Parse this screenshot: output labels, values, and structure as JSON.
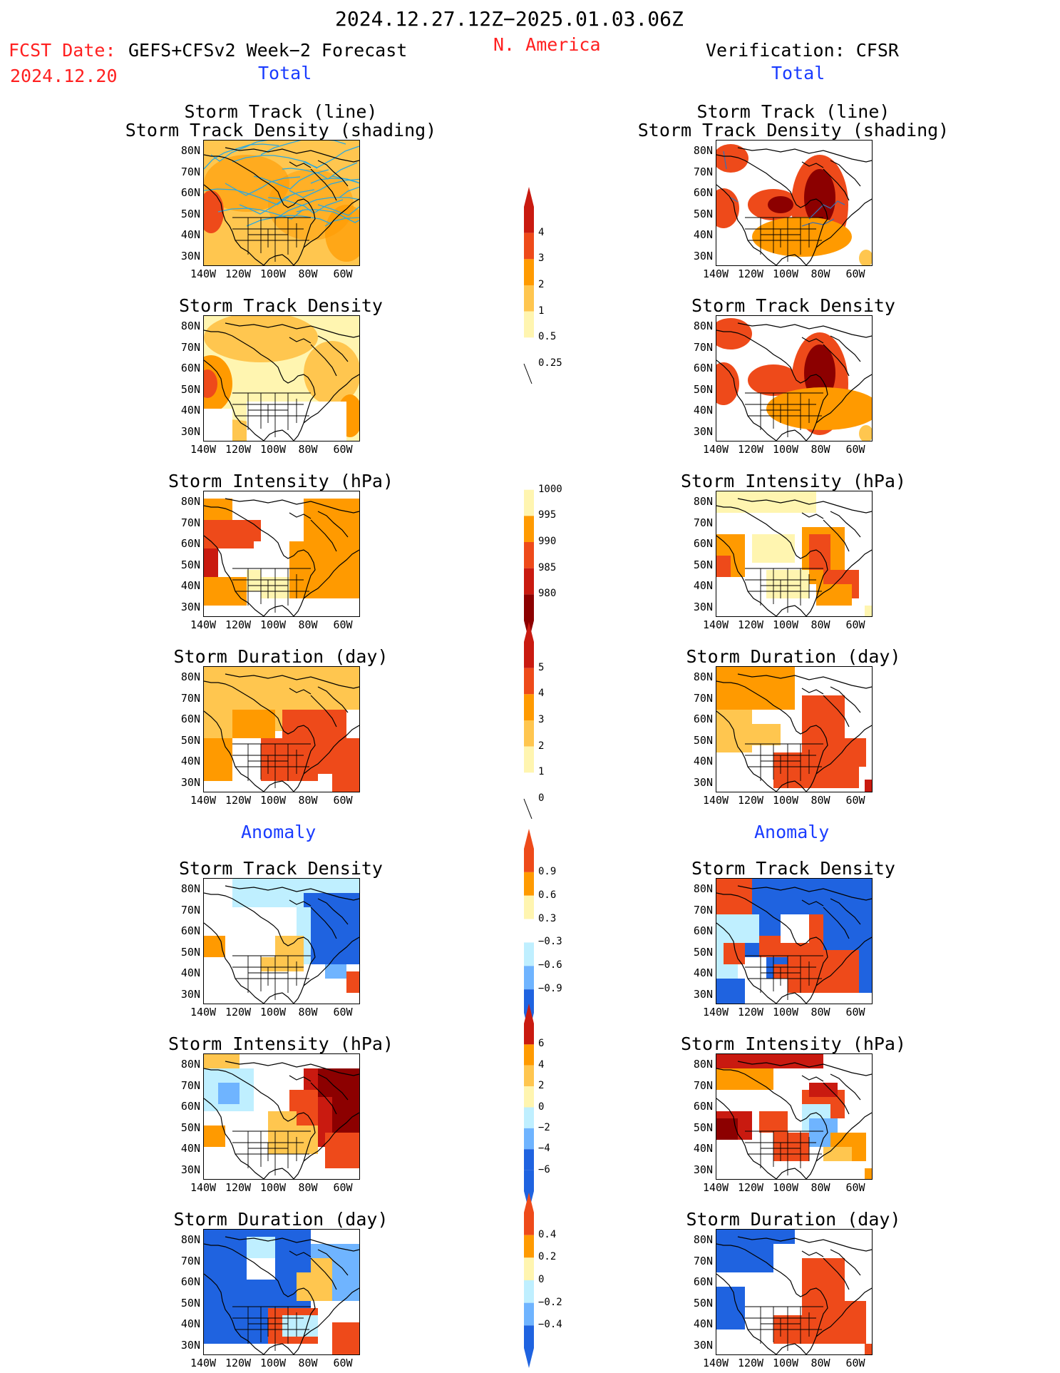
{
  "header": {
    "date_range": "2024.12.27.12Z−2025.01.03.06Z",
    "fcst_label": "FCST Date:",
    "fcst_model": "GEFS+CFSv2 Week−2 Forecast",
    "fcst_date": "2024.12.20",
    "region": "N. America",
    "verification": "Verification: CFSR"
  },
  "sections": {
    "total": "Total",
    "anomaly": "Anomaly"
  },
  "panel_titles": {
    "track_line": "Storm Track (line)",
    "track_shading": "Storm Track Density (shading)",
    "density": "Storm Track Density",
    "intensity": "Storm Intensity (hPa)",
    "duration": "Storm Duration (day)"
  },
  "axes": {
    "lat_ticks": [
      "80N",
      "70N",
      "60N",
      "50N",
      "40N",
      "30N"
    ],
    "lon_ticks": [
      "140W",
      "120W",
      "100W",
      "80W",
      "60W"
    ]
  },
  "colorbars": {
    "density_total": [
      "4",
      "3",
      "2",
      "1",
      "0.5",
      "0.25"
    ],
    "intensity_total": [
      "1000",
      "995",
      "990",
      "985",
      "980"
    ],
    "duration_total": [
      "5",
      "4",
      "3",
      "2",
      "1",
      "0"
    ],
    "density_anom": [
      "0.9",
      "0.6",
      "0.3",
      "−0.3",
      "−0.6",
      "−0.9"
    ],
    "intensity_anom": [
      "6",
      "4",
      "2",
      "0",
      "−2",
      "−4",
      "−6"
    ],
    "duration_anom": [
      "0.4",
      "0.2",
      "0",
      "−0.2",
      "−0.4"
    ]
  },
  "colors": {
    "pale_yellow": "#fff5b0",
    "light_orange": "#ffc64f",
    "orange": "#ff9a00",
    "red_orange": "#ee4a1a",
    "red": "#c91a10",
    "dark_red": "#8c0000",
    "light_blue": "#bfefff",
    "mid_blue": "#6fb4ff",
    "blue": "#1f63e0",
    "track_line": "#2aa8e0"
  }
}
